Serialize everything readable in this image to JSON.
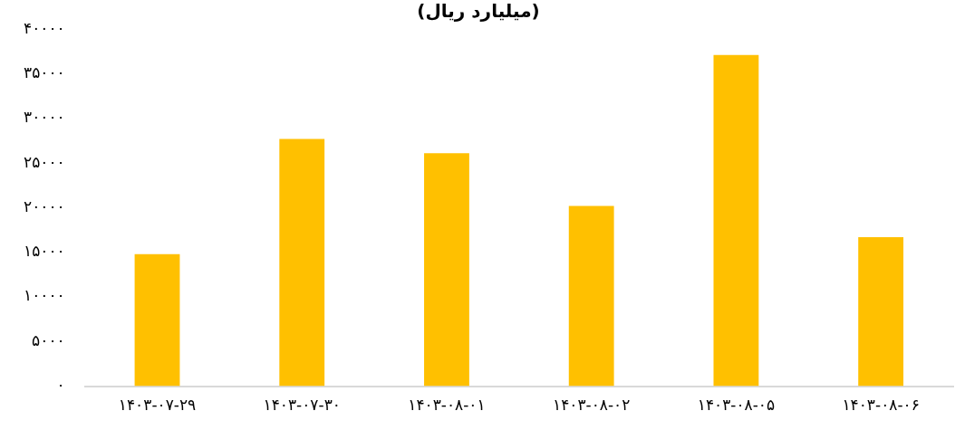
{
  "chart_data": {
    "type": "bar",
    "title": "(میلیارد ریال)",
    "categories": [
      "۱۴۰۳-۰۷-۲۹",
      "۱۴۰۳-۰۷-۳۰",
      "۱۴۰۳-۰۸-۰۱",
      "۱۴۰۳-۰۸-۰۲",
      "۱۴۰۳-۰۸-۰۵",
      "۱۴۰۳-۰۸-۰۶"
    ],
    "values": [
      14800,
      27700,
      26100,
      20200,
      37100,
      16700
    ],
    "color": "#ffc000",
    "ylim": [
      0,
      40000
    ],
    "yticks": [
      {
        "value": 0,
        "label": "۰"
      },
      {
        "value": 5000,
        "label": "۵۰۰۰"
      },
      {
        "value": 10000,
        "label": "۱۰۰۰۰"
      },
      {
        "value": 15000,
        "label": "۱۵۰۰۰"
      },
      {
        "value": 20000,
        "label": "۲۰۰۰۰"
      },
      {
        "value": 25000,
        "label": "۲۵۰۰۰"
      },
      {
        "value": 30000,
        "label": "۳۰۰۰۰"
      },
      {
        "value": 35000,
        "label": "۳۵۰۰۰"
      },
      {
        "value": 40000,
        "label": "۴۰۰۰۰"
      }
    ],
    "grid": false,
    "legend": false
  }
}
